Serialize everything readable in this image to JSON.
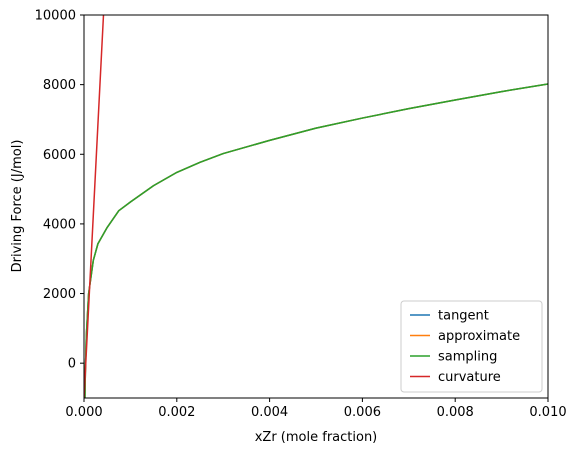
{
  "chart_data": {
    "type": "line",
    "title": "",
    "xlabel": "xZr (mole fraction)",
    "ylabel": "Driving Force (J/mol)",
    "xlim": [
      0.0,
      0.01
    ],
    "ylim": [
      -1000,
      10000
    ],
    "xticks": [
      "0.000",
      "0.002",
      "0.004",
      "0.006",
      "0.008",
      "0.010"
    ],
    "yticks": [
      "0",
      "2000",
      "4000",
      "6000",
      "8000",
      "10000"
    ],
    "legend_position": "lower-right",
    "grid": false,
    "series": [
      {
        "name": "tangent",
        "color": "#1f77b4",
        "x": [
          2e-05,
          3e-05,
          5e-05,
          0.0001,
          0.0002,
          0.0003,
          0.0005,
          0.00075,
          0.001,
          0.0015,
          0.002,
          0.0025,
          0.003,
          0.004,
          0.005,
          0.006,
          0.007,
          0.008,
          0.009,
          0.01
        ],
        "y": [
          -1000,
          -220,
          780,
          2000,
          2950,
          3430,
          3900,
          4380,
          4630,
          5100,
          5480,
          5770,
          6020,
          6400,
          6750,
          7040,
          7310,
          7560,
          7800,
          8020
        ]
      },
      {
        "name": "approximate",
        "color": "#ff7f0e",
        "x": [
          2e-05,
          3e-05,
          5e-05,
          0.0001,
          0.0002,
          0.0003,
          0.0005,
          0.00075,
          0.001,
          0.0015,
          0.002,
          0.0025,
          0.003,
          0.004,
          0.005,
          0.006,
          0.007,
          0.008,
          0.009,
          0.01
        ],
        "y": [
          -1000,
          -220,
          780,
          2000,
          2950,
          3430,
          3900,
          4380,
          4630,
          5100,
          5480,
          5770,
          6020,
          6400,
          6750,
          7040,
          7310,
          7560,
          7800,
          8020
        ]
      },
      {
        "name": "sampling",
        "color": "#2ca02c",
        "x": [
          2e-05,
          3e-05,
          5e-05,
          0.0001,
          0.0002,
          0.0003,
          0.0005,
          0.00075,
          0.001,
          0.0015,
          0.002,
          0.0025,
          0.003,
          0.004,
          0.005,
          0.006,
          0.007,
          0.008,
          0.009,
          0.01
        ],
        "y": [
          -1000,
          -220,
          780,
          2000,
          2950,
          3430,
          3900,
          4380,
          4630,
          5100,
          5480,
          5770,
          6020,
          6400,
          6750,
          7040,
          7310,
          7560,
          7800,
          8020
        ]
      },
      {
        "name": "curvature",
        "color": "#d62728",
        "x": [
          0.0,
          0.0001,
          0.0002,
          0.0003,
          0.00042
        ],
        "y": [
          -1000,
          1620,
          4240,
          6860,
          10000
        ]
      }
    ]
  }
}
